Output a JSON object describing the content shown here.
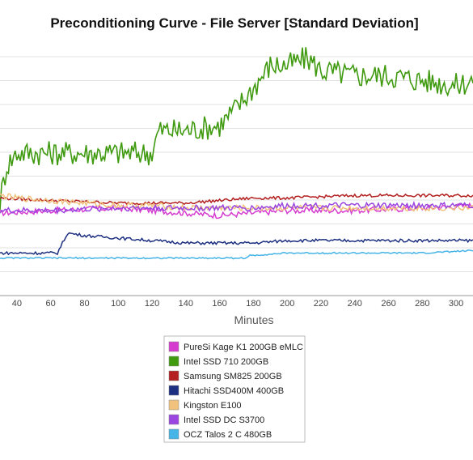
{
  "chart_data": {
    "type": "line",
    "title": "Preconditioning Curve - File Server [Standard Deviation]",
    "xlabel": "Minutes",
    "ylabel": "",
    "xlim": [
      30,
      310
    ],
    "xticks": [
      40,
      60,
      80,
      100,
      120,
      140,
      160,
      180,
      200,
      220,
      240,
      260,
      280,
      300
    ],
    "ylim": [
      0,
      1
    ],
    "grid": true,
    "legend_position": "bottom",
    "series": [
      {
        "name": "PureSi Kage K1 200GB eMLC",
        "color": "#d63bd0",
        "x": [
          30,
          60,
          100,
          120,
          140,
          160,
          180,
          200,
          240,
          280,
          310
        ],
        "y": [
          0.33,
          0.34,
          0.35,
          0.34,
          0.33,
          0.32,
          0.33,
          0.34,
          0.34,
          0.35,
          0.36
        ]
      },
      {
        "name": "Intel SSD 710 200GB",
        "color": "#3f9a0f",
        "x": [
          30,
          34,
          40,
          60,
          80,
          100,
          120,
          124,
          140,
          160,
          170,
          180,
          190,
          200,
          212,
          220,
          240,
          260,
          280,
          300,
          310
        ],
        "y": [
          0.38,
          0.52,
          0.57,
          0.57,
          0.57,
          0.57,
          0.57,
          0.66,
          0.66,
          0.68,
          0.75,
          0.83,
          0.92,
          0.92,
          0.95,
          0.9,
          0.88,
          0.88,
          0.86,
          0.84,
          0.86
        ]
      },
      {
        "name": "Samsung SM825 200GB",
        "color": "#b42020",
        "x": [
          30,
          60,
          100,
          120,
          140,
          160,
          180,
          200,
          240,
          280,
          310
        ],
        "y": [
          0.39,
          0.38,
          0.37,
          0.37,
          0.37,
          0.38,
          0.39,
          0.39,
          0.4,
          0.4,
          0.4
        ]
      },
      {
        "name": "Hitachi SSD400M 400GB",
        "color": "#1c2f80",
        "x": [
          30,
          64,
          70,
          80,
          100,
          120,
          140,
          160,
          180,
          200,
          240,
          280,
          310
        ],
        "y": [
          0.17,
          0.17,
          0.25,
          0.24,
          0.23,
          0.22,
          0.21,
          0.21,
          0.21,
          0.22,
          0.22,
          0.22,
          0.22
        ]
      },
      {
        "name": "Kingston E100",
        "color": "#f0c27d",
        "x": [
          30,
          40,
          60,
          80,
          100,
          120,
          140,
          160,
          180,
          200,
          240,
          280,
          310
        ],
        "y": [
          0.4,
          0.39,
          0.38,
          0.37,
          0.36,
          0.36,
          0.35,
          0.35,
          0.35,
          0.35,
          0.35,
          0.35,
          0.35
        ]
      },
      {
        "name": "Intel SSD DC S3700",
        "color": "#9b46e0",
        "x": [
          30,
          60,
          100,
          120,
          140,
          160,
          180,
          200,
          240,
          280,
          310
        ],
        "y": [
          0.34,
          0.34,
          0.35,
          0.35,
          0.35,
          0.35,
          0.35,
          0.36,
          0.36,
          0.36,
          0.36
        ]
      },
      {
        "name": "OCZ Talos 2 C 480GB",
        "color": "#45b4e6",
        "x": [
          30,
          60,
          100,
          120,
          140,
          160,
          176,
          178,
          200,
          240,
          280,
          310
        ],
        "y": [
          0.15,
          0.15,
          0.15,
          0.15,
          0.15,
          0.15,
          0.15,
          0.16,
          0.17,
          0.17,
          0.17,
          0.18
        ]
      }
    ]
  }
}
